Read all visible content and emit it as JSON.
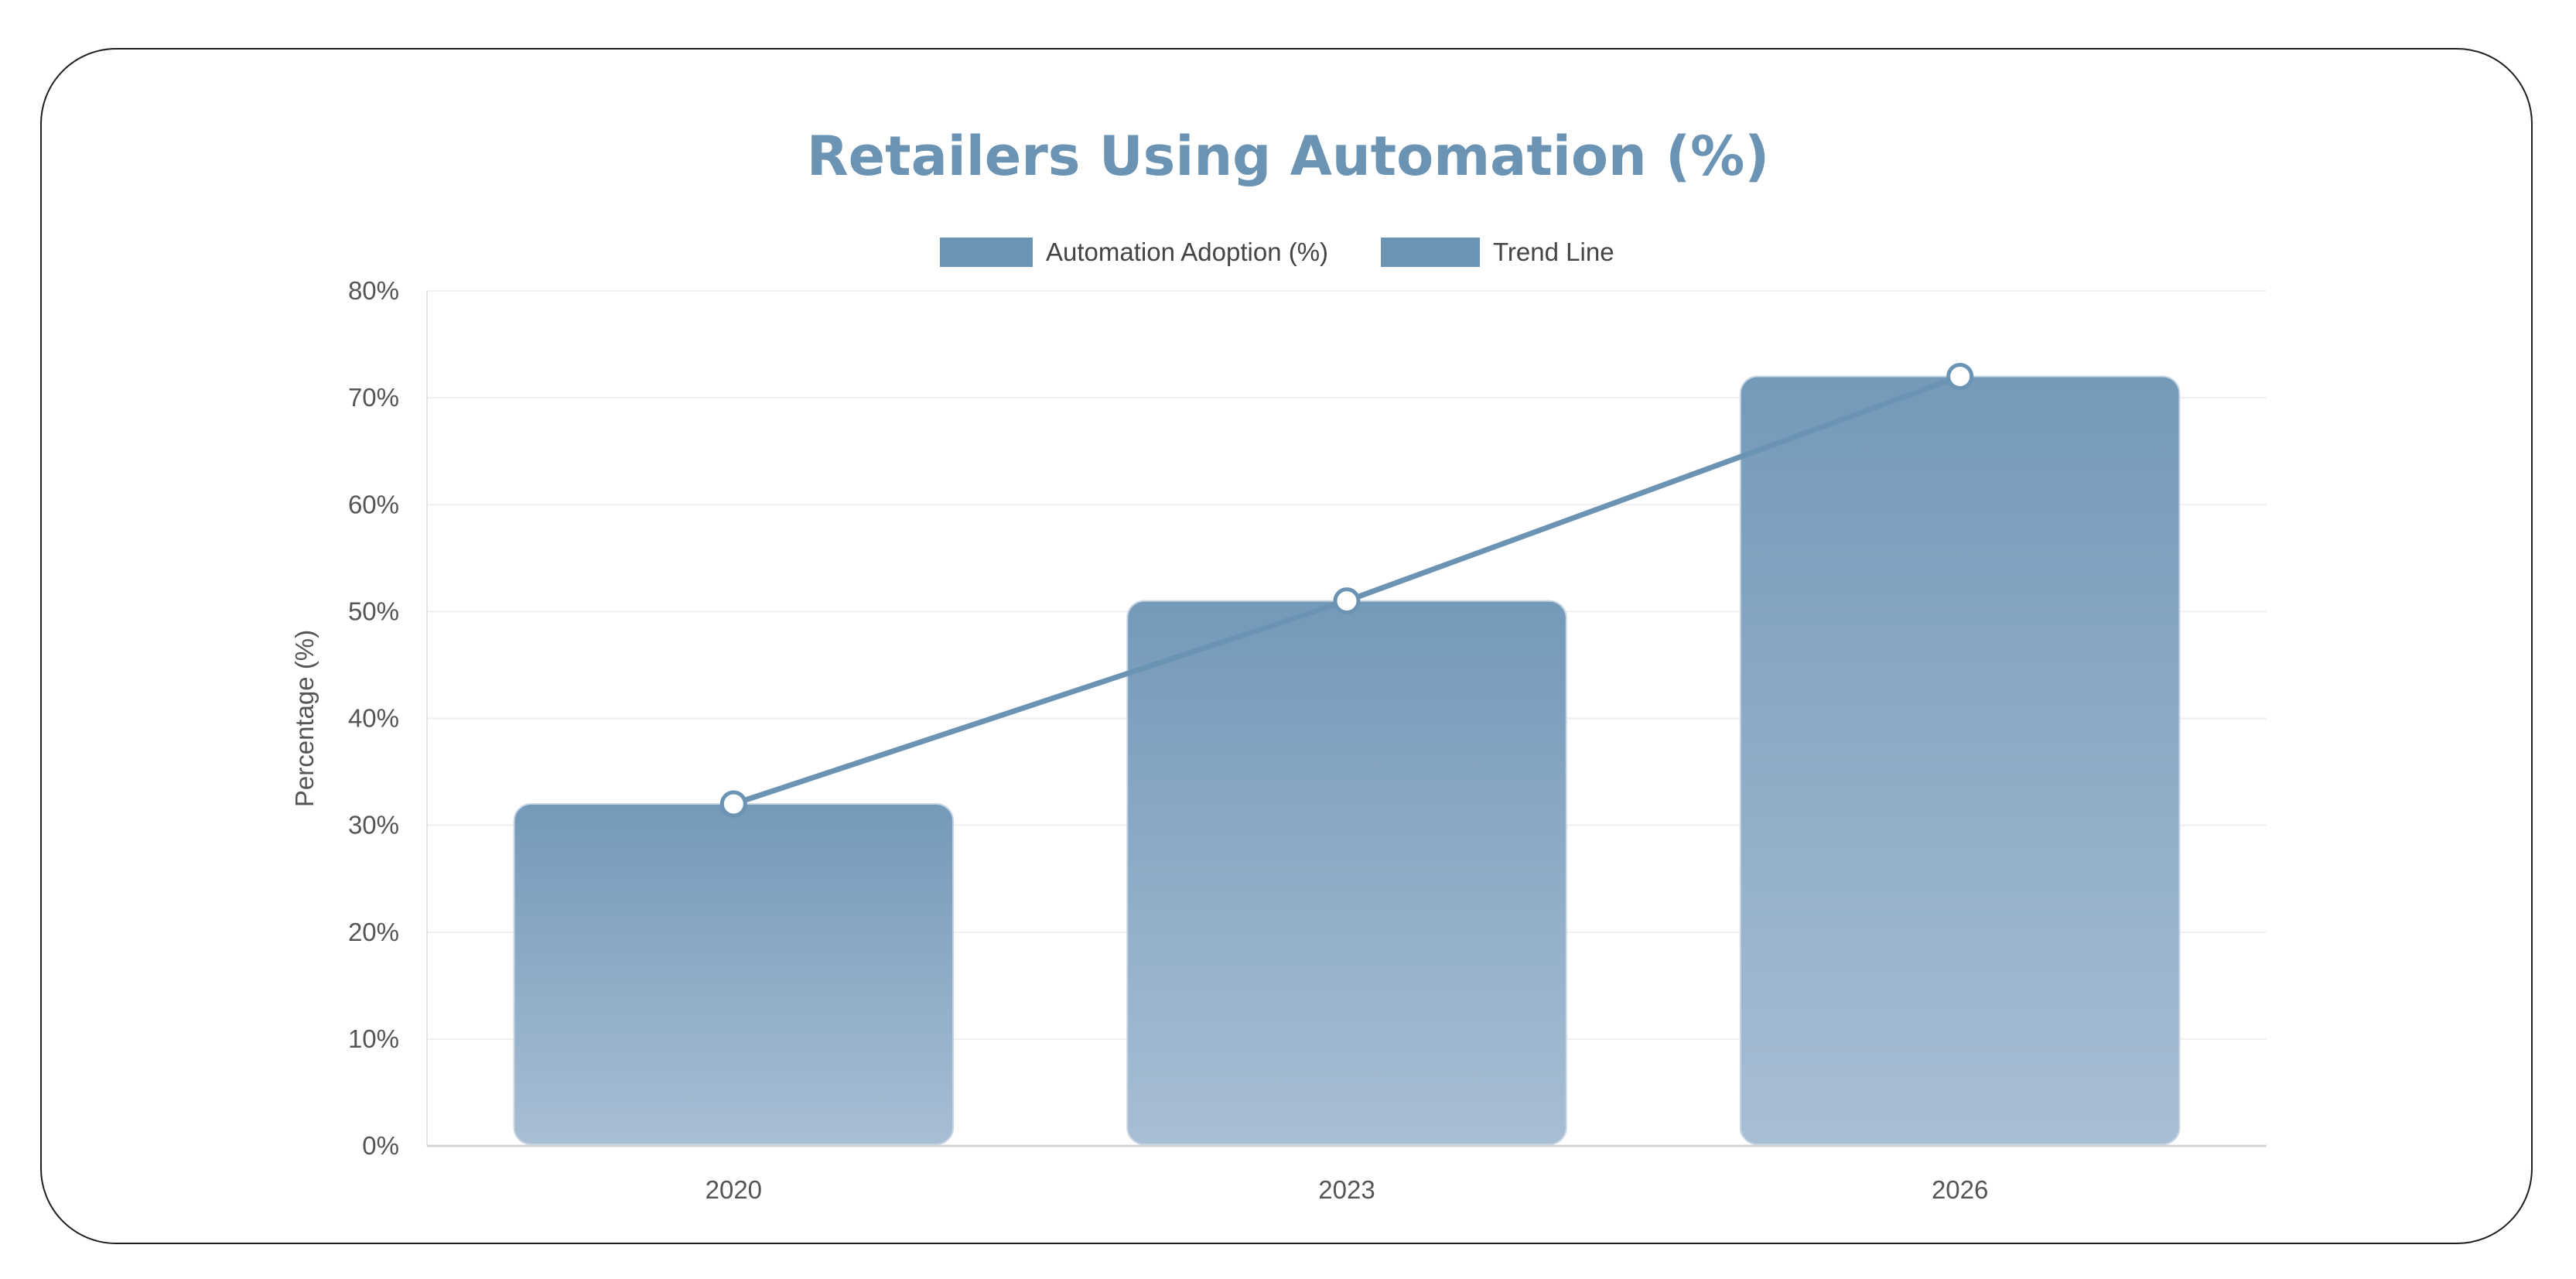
{
  "chart_data": {
    "type": "bar",
    "title": "Retailers Using Automation (%)",
    "categories": [
      "2020",
      "2023",
      "2026"
    ],
    "series": [
      {
        "name": "Automation Adoption (%)",
        "type": "bar",
        "values": [
          32,
          51,
          72
        ]
      },
      {
        "name": "Trend Line",
        "type": "line",
        "values": [
          32,
          51,
          72
        ]
      }
    ],
    "xlabel": "",
    "ylabel": "Percentage (%)",
    "ylim": [
      0,
      80
    ],
    "ytick_step": 10,
    "ytick_suffix": "%",
    "legend_position": "top",
    "grid": true,
    "colors": {
      "title": "#6a93b4",
      "legend_swatch": "#6a93b4",
      "bar_top": "#7499b9",
      "bar_bottom": "#a8bed4",
      "trend_line": "#6a93b4",
      "grid": "#efefef"
    }
  }
}
